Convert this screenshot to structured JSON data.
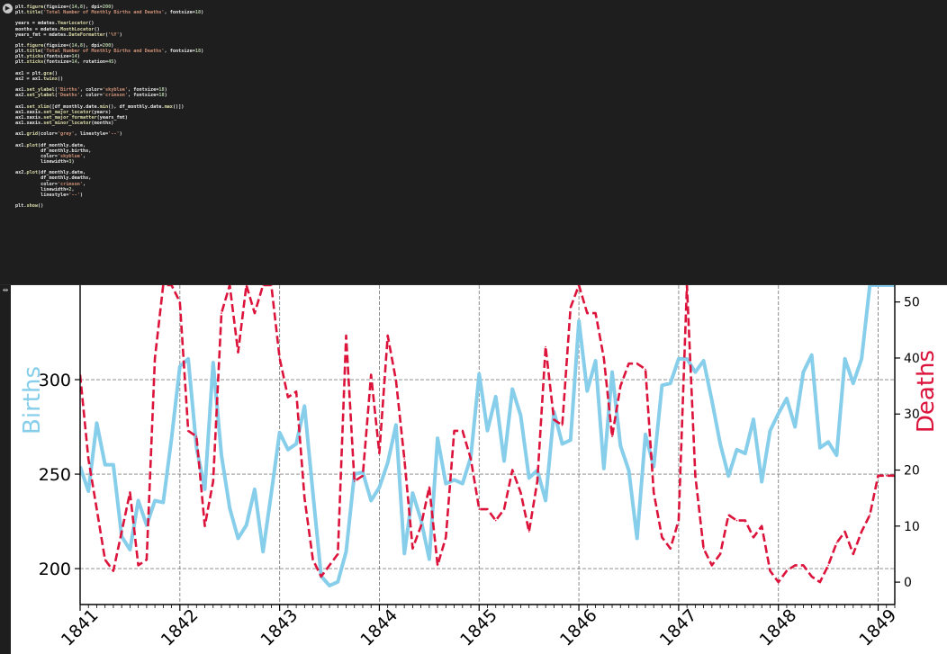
{
  "code_cell": {
    "run_icon": "play-icon",
    "lines": [
      [
        [
          "plt.",
          "t"
        ],
        [
          "figure",
          "f"
        ],
        [
          "(figsize=(",
          "t"
        ],
        [
          "14",
          "n"
        ],
        [
          ",",
          "t"
        ],
        [
          "8",
          "n"
        ],
        [
          "), dpi=",
          "t"
        ],
        [
          "200",
          "n"
        ],
        [
          ")",
          "t"
        ]
      ],
      [
        [
          "plt.",
          "t"
        ],
        [
          "title",
          "f"
        ],
        [
          "(",
          "t"
        ],
        [
          "'Total Number of Monthly Births and Deaths'",
          "s"
        ],
        [
          ", fontsize=",
          "t"
        ],
        [
          "18",
          "n"
        ],
        [
          ")",
          "t"
        ]
      ],
      [],
      [
        [
          "years = mdates.",
          "t"
        ],
        [
          "YearLocator",
          "f"
        ],
        [
          "()",
          "t"
        ]
      ],
      [
        [
          "months = mdates.",
          "t"
        ],
        [
          "MonthLocator",
          "f"
        ],
        [
          "()",
          "t"
        ]
      ],
      [
        [
          "years_fmt = mdates.",
          "t"
        ],
        [
          "DateFormatter",
          "f"
        ],
        [
          "(",
          "t"
        ],
        [
          "'%Y'",
          "s"
        ],
        [
          ")",
          "t"
        ]
      ],
      [],
      [
        [
          "plt.",
          "t"
        ],
        [
          "figure",
          "f"
        ],
        [
          "(figsize=(",
          "t"
        ],
        [
          "14",
          "n"
        ],
        [
          ",",
          "t"
        ],
        [
          "8",
          "n"
        ],
        [
          "), dpi=",
          "t"
        ],
        [
          "200",
          "n"
        ],
        [
          ")",
          "t"
        ]
      ],
      [
        [
          "plt.",
          "t"
        ],
        [
          "title",
          "f"
        ],
        [
          "(",
          "t"
        ],
        [
          "'Total Number of Monthly Births and Deaths'",
          "s"
        ],
        [
          ", fontsize=",
          "t"
        ],
        [
          "18",
          "n"
        ],
        [
          ")",
          "t"
        ]
      ],
      [
        [
          "plt.",
          "t"
        ],
        [
          "yticks",
          "f"
        ],
        [
          "(fontsize=",
          "t"
        ],
        [
          "14",
          "n"
        ],
        [
          ")",
          "t"
        ]
      ],
      [
        [
          "plt.",
          "t"
        ],
        [
          "xticks",
          "f"
        ],
        [
          "(fontsize=",
          "t"
        ],
        [
          "14",
          "n"
        ],
        [
          ", rotation=",
          "t"
        ],
        [
          "45",
          "n"
        ],
        [
          ")",
          "t"
        ]
      ],
      [],
      [
        [
          "ax1 = plt.",
          "t"
        ],
        [
          "gca",
          "f"
        ],
        [
          "()",
          "t"
        ]
      ],
      [
        [
          "ax2 = ax1.",
          "t"
        ],
        [
          "twinx",
          "f"
        ],
        [
          "()",
          "t"
        ]
      ],
      [],
      [
        [
          "ax1.",
          "t"
        ],
        [
          "set_ylabel",
          "f"
        ],
        [
          "(",
          "t"
        ],
        [
          "'Births'",
          "s"
        ],
        [
          ", color=",
          "t"
        ],
        [
          "'skyblue'",
          "s"
        ],
        [
          ", fontsize=",
          "t"
        ],
        [
          "18",
          "n"
        ],
        [
          ")",
          "t"
        ]
      ],
      [
        [
          "ax2.",
          "t"
        ],
        [
          "set_ylabel",
          "f"
        ],
        [
          "(",
          "t"
        ],
        [
          "'Deaths'",
          "s"
        ],
        [
          ", color=",
          "t"
        ],
        [
          "'crimson'",
          "s"
        ],
        [
          ", fontsize=",
          "t"
        ],
        [
          "18",
          "n"
        ],
        [
          ")",
          "t"
        ]
      ],
      [],
      [
        [
          "ax1.",
          "t"
        ],
        [
          "set_xlim",
          "f"
        ],
        [
          "([df_monthly.date.",
          "t"
        ],
        [
          "min",
          "f"
        ],
        [
          "(), df_monthly.date.",
          "t"
        ],
        [
          "max",
          "f"
        ],
        [
          "()])",
          "t"
        ]
      ],
      [
        [
          "ax1.xaxis.",
          "t"
        ],
        [
          "set_major_locator",
          "f"
        ],
        [
          "(years)",
          "t"
        ]
      ],
      [
        [
          "ax1.xaxis.",
          "t"
        ],
        [
          "set_major_formatter",
          "f"
        ],
        [
          "(years_fmt)",
          "t"
        ]
      ],
      [
        [
          "ax1.xaxis.",
          "t"
        ],
        [
          "set_minor_locator",
          "f"
        ],
        [
          "(months)",
          "t"
        ]
      ],
      [],
      [
        [
          "ax1.",
          "t"
        ],
        [
          "grid",
          "f"
        ],
        [
          "(color=",
          "t"
        ],
        [
          "'grey'",
          "s"
        ],
        [
          ", linestyle=",
          "t"
        ],
        [
          "'--'",
          "s"
        ],
        [
          ")",
          "t"
        ]
      ],
      [],
      [
        [
          "ax1.",
          "t"
        ],
        [
          "plot",
          "f"
        ],
        [
          "(df_monthly.date,",
          "t"
        ]
      ],
      [
        [
          "         df_monthly.births,",
          "t"
        ]
      ],
      [
        [
          "         color=",
          "t"
        ],
        [
          "'skyblue'",
          "s"
        ],
        [
          ",",
          "t"
        ]
      ],
      [
        [
          "         linewidth=",
          "t"
        ],
        [
          "3",
          "n"
        ],
        [
          ")",
          "t"
        ]
      ],
      [],
      [
        [
          "ax2.",
          "t"
        ],
        [
          "plot",
          "f"
        ],
        [
          "(df_monthly.date,",
          "t"
        ]
      ],
      [
        [
          "         df_monthly.deaths,",
          "t"
        ]
      ],
      [
        [
          "         color=",
          "t"
        ],
        [
          "'crimson'",
          "s"
        ],
        [
          ",",
          "t"
        ]
      ],
      [
        [
          "         linewidth=",
          "t"
        ],
        [
          "2",
          "n"
        ],
        [
          ",",
          "t"
        ]
      ],
      [
        [
          "         linestyle=",
          "t"
        ],
        [
          "'--'",
          "s"
        ],
        [
          ")",
          "t"
        ]
      ],
      [],
      [
        [
          "plt.",
          "t"
        ],
        [
          "show",
          "f"
        ],
        [
          "()",
          "t"
        ]
      ]
    ]
  },
  "output": {
    "toggle_icon": "output-toggle-icon",
    "toggle_glyph": "⇹"
  },
  "colors": {
    "births": "#87ceeb",
    "deaths": "#dc143c",
    "grid": "#808080"
  },
  "chart_data": {
    "type": "line",
    "title": "",
    "xlabel": "",
    "ylabel_left": "Births",
    "ylabel_right": "Deaths",
    "x_ticks": [
      "1841",
      "1842",
      "1843",
      "1844",
      "1845",
      "1846",
      "1847",
      "1848",
      "1849"
    ],
    "xlim": [
      "1841-01",
      "1849-03"
    ],
    "y_left_ticks": [
      200,
      250,
      300
    ],
    "y_left_visible_range": [
      181,
      350
    ],
    "y_right_ticks": [
      0,
      10,
      20,
      30,
      40,
      50
    ],
    "y_right_visible_range": [
      -4,
      53
    ],
    "grid": true,
    "x": [
      "1841-01",
      "1841-02",
      "1841-03",
      "1841-04",
      "1841-05",
      "1841-06",
      "1841-07",
      "1841-08",
      "1841-09",
      "1841-10",
      "1841-11",
      "1841-12",
      "1842-01",
      "1842-02",
      "1842-03",
      "1842-04",
      "1842-05",
      "1842-06",
      "1842-07",
      "1842-08",
      "1842-09",
      "1842-10",
      "1842-11",
      "1842-12",
      "1843-01",
      "1843-02",
      "1843-03",
      "1843-04",
      "1843-05",
      "1843-06",
      "1843-07",
      "1843-08",
      "1843-09",
      "1843-10",
      "1843-11",
      "1843-12",
      "1844-01",
      "1844-02",
      "1844-03",
      "1844-04",
      "1844-05",
      "1844-06",
      "1844-07",
      "1844-08",
      "1844-09",
      "1844-10",
      "1844-11",
      "1844-12",
      "1845-01",
      "1845-02",
      "1845-03",
      "1845-04",
      "1845-05",
      "1845-06",
      "1845-07",
      "1845-08",
      "1845-09",
      "1845-10",
      "1845-11",
      "1845-12",
      "1846-01",
      "1846-02",
      "1846-03",
      "1846-04",
      "1846-05",
      "1846-06",
      "1846-07",
      "1846-08",
      "1846-09",
      "1846-10",
      "1846-11",
      "1846-12",
      "1847-01",
      "1847-02",
      "1847-03",
      "1847-04",
      "1847-05",
      "1847-06",
      "1847-07",
      "1847-08",
      "1847-09",
      "1847-10",
      "1847-11",
      "1847-12",
      "1848-01",
      "1848-02",
      "1848-03",
      "1848-04",
      "1848-05",
      "1848-06",
      "1848-07",
      "1848-08",
      "1848-09",
      "1848-10",
      "1848-11",
      "1848-12",
      "1849-01",
      "1849-02",
      "1849-03"
    ],
    "series": [
      {
        "name": "Births",
        "axis": "left",
        "style": "solid",
        "values": [
          254,
          241,
          277,
          255,
          255,
          217,
          210,
          236,
          223,
          236,
          235,
          269,
          307,
          311,
          264,
          242,
          309,
          260,
          232,
          216,
          223,
          242,
          209,
          240,
          272,
          263,
          266,
          286,
          240,
          196,
          191,
          193,
          209,
          250,
          251,
          236,
          243,
          256,
          276,
          208,
          240,
          226,
          205,
          269,
          245,
          247,
          245,
          259,
          303,
          273,
          291,
          257,
          295,
          281,
          248,
          252,
          236,
          283,
          266,
          268,
          331,
          294,
          310,
          253,
          304,
          265,
          252,
          216,
          271,
          254,
          297,
          298,
          311,
          311,
          304,
          310,
          289,
          266,
          249,
          263,
          261,
          279,
          246,
          273,
          282,
          290,
          275,
          304,
          313,
          264,
          267,
          260,
          311,
          298,
          311,
          350,
          350,
          350,
          350
        ]
      },
      {
        "name": "Deaths",
        "axis": "right",
        "style": "dashed",
        "values": [
          37,
          22,
          13,
          4,
          2,
          9,
          16,
          3,
          4,
          40,
          53,
          53,
          50,
          27,
          26,
          10,
          18,
          48,
          53,
          41,
          53,
          48,
          53,
          53,
          40,
          33,
          34,
          15,
          4,
          1,
          3,
          5,
          44,
          18,
          19,
          37,
          23,
          44,
          36,
          22,
          6,
          10,
          17,
          3,
          8,
          27,
          27,
          22,
          13,
          13,
          11,
          13,
          20,
          16,
          9,
          18,
          42,
          29,
          28,
          49,
          53,
          48,
          48,
          40,
          26,
          35,
          39,
          39,
          38,
          16,
          8,
          6,
          11,
          53,
          19,
          6,
          3,
          5,
          12,
          11,
          11,
          8,
          10,
          2,
          0,
          2,
          3,
          3,
          1,
          0,
          3,
          7,
          9,
          5,
          9,
          12,
          19,
          19,
          19
        ]
      }
    ]
  }
}
